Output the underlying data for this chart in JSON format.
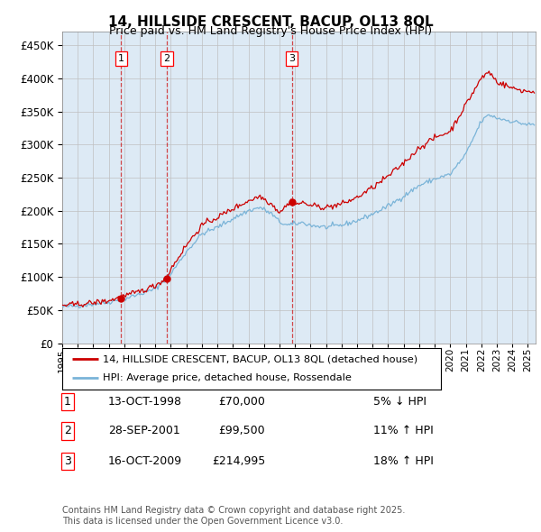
{
  "title": "14, HILLSIDE CRESCENT, BACUP, OL13 8QL",
  "subtitle": "Price paid vs. HM Land Registry's House Price Index (HPI)",
  "legend_line1": "14, HILLSIDE CRESCENT, BACUP, OL13 8QL (detached house)",
  "legend_line2": "HPI: Average price, detached house, Rossendale",
  "transactions": [
    {
      "num": 1,
      "date": "13-OCT-1998",
      "price": 70000,
      "pct": "5%",
      "dir": "↓",
      "year": 1998.79
    },
    {
      "num": 2,
      "date": "28-SEP-2001",
      "price": 99500,
      "pct": "11%",
      "dir": "↑",
      "year": 2001.74
    },
    {
      "num": 3,
      "date": "16-OCT-2009",
      "price": 214995,
      "pct": "18%",
      "dir": "↑",
      "year": 2009.79
    }
  ],
  "footer": "Contains HM Land Registry data © Crown copyright and database right 2025.\nThis data is licensed under the Open Government Licence v3.0.",
  "hpi_color": "#7ab4d8",
  "price_color": "#cc0000",
  "transaction_line_color": "#cc0000",
  "background_color": "#ddeaf5",
  "ylim": [
    0,
    470000
  ],
  "yticks": [
    0,
    50000,
    100000,
    150000,
    200000,
    250000,
    300000,
    350000,
    400000,
    450000
  ],
  "year_start": 1995.0,
  "year_end": 2025.5
}
